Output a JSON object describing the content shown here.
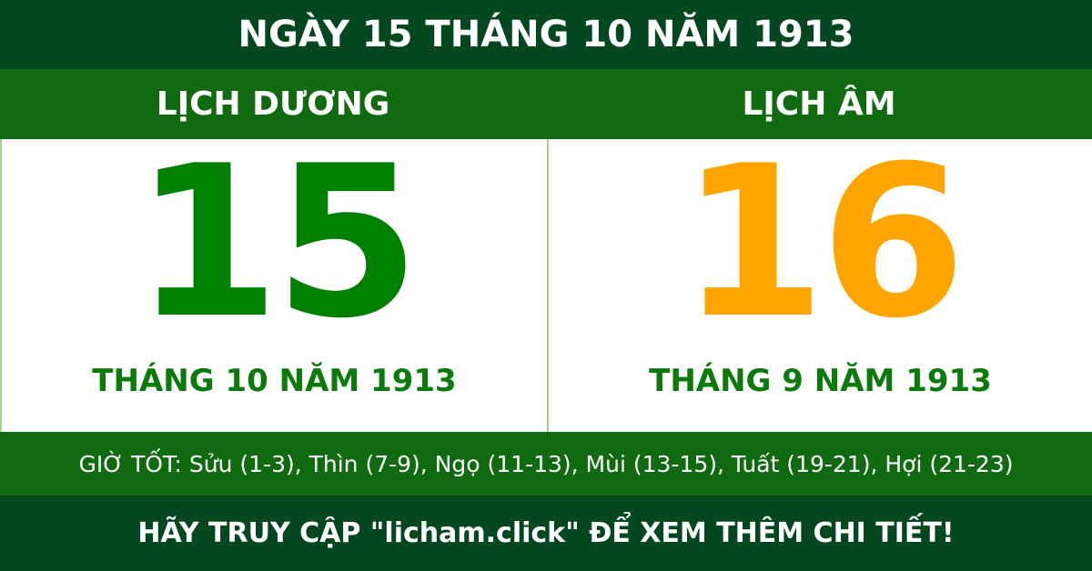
{
  "header": {
    "title": "NGÀY 15 THÁNG 10 NĂM 1913"
  },
  "solar": {
    "label": "LỊCH DƯƠNG",
    "day": "15",
    "month_year": "THÁNG 10 NĂM 1913"
  },
  "lunar": {
    "label": "LỊCH ÂM",
    "day": "16",
    "month_year": "THÁNG 9 NĂM 1913"
  },
  "good_hours": "GIỜ TỐT: Sửu (1-3), Thìn (7-9), Ngọ (11-13), Mùi (13-15), Tuất (19-21), Hợi (21-23)",
  "footer": "HÃY TRUY CẬP \"licham.click\" ĐỂ XEM THÊM CHI TIẾT!",
  "colors": {
    "dark_green": "#03471f",
    "green": "#106b10",
    "solar_day": "#008000",
    "lunar_day": "#ffa500"
  }
}
